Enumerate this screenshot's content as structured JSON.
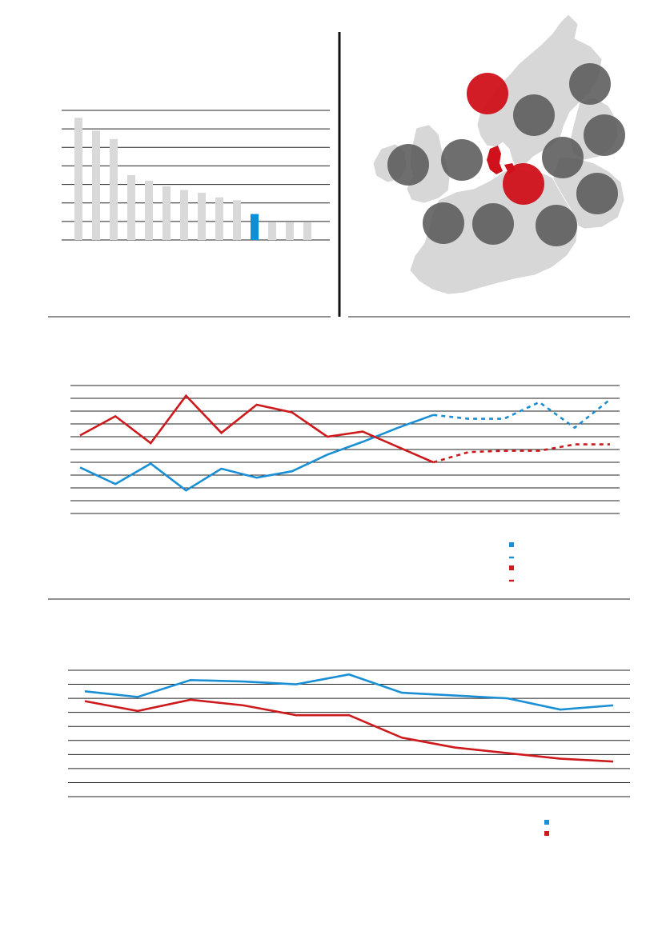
{
  "colors": {
    "highlight_blue": "#0a8fd8",
    "series_blue": "#1a8fd4",
    "series_red": "#cc1a1d",
    "bar_grey": "#d9d9d9",
    "map_land": "#d7d7d7",
    "map_circle": "#5a5a5a",
    "map_highlight": "#d0111b"
  },
  "chart_data": [
    {
      "type": "bar",
      "title": "",
      "categories": [
        "",
        "",
        "",
        "",
        "",
        "",
        "",
        "",
        "",
        "",
        "",
        "",
        "",
        ""
      ],
      "values": [
        6.6,
        5.9,
        5.45,
        3.5,
        3.2,
        2.9,
        2.7,
        2.55,
        2.3,
        2.15,
        1.4,
        0.95,
        0.95,
        0.95
      ],
      "highlight_index": 10,
      "ylim": [
        0,
        7
      ],
      "grid": true
    },
    {
      "type": "line",
      "title": "",
      "x": [
        0,
        1,
        2,
        3,
        4,
        5,
        6,
        7,
        8,
        9,
        10,
        11,
        12,
        13,
        14,
        15
      ],
      "series": [
        {
          "style": "solid",
          "color": "blue",
          "values": [
            3.6,
            2.3,
            3.9,
            1.8,
            3.5,
            2.8,
            3.3,
            4.6,
            5.6,
            6.7,
            7.7,
            null,
            null,
            null,
            null,
            null
          ]
        },
        {
          "style": "dashed",
          "color": "blue",
          "values": [
            null,
            null,
            null,
            null,
            null,
            null,
            null,
            null,
            null,
            null,
            7.7,
            7.4,
            7.4,
            8.7,
            6.7,
            8.9
          ]
        },
        {
          "style": "solid",
          "color": "red",
          "values": [
            6.1,
            7.6,
            5.5,
            9.2,
            6.3,
            8.5,
            7.9,
            6.0,
            6.4,
            5.2,
            4.0,
            null,
            null,
            null,
            null,
            null
          ]
        },
        {
          "style": "dashed",
          "color": "red",
          "values": [
            null,
            null,
            null,
            null,
            null,
            null,
            null,
            null,
            null,
            null,
            4.0,
            4.8,
            4.9,
            4.9,
            5.4,
            5.4
          ]
        }
      ],
      "ylim": [
        0,
        10
      ],
      "grid": true,
      "legend": "bottom-right"
    },
    {
      "type": "line",
      "title": "",
      "x": [
        0,
        1,
        2,
        3,
        4,
        5,
        6,
        7,
        8,
        9,
        10
      ],
      "series": [
        {
          "style": "solid",
          "color": "blue",
          "values": [
            7.5,
            7.1,
            8.3,
            8.2,
            8.0,
            8.7,
            7.4,
            7.2,
            7.0,
            6.2,
            6.5
          ]
        },
        {
          "style": "solid",
          "color": "red",
          "values": [
            6.8,
            6.1,
            6.9,
            6.5,
            5.8,
            5.8,
            4.2,
            3.5,
            3.1,
            2.7,
            2.5
          ]
        }
      ],
      "ylim": [
        0,
        9
      ],
      "grid": true,
      "legend": "bottom-right"
    }
  ],
  "map": {
    "circles": [
      {
        "id": "ireland",
        "highlight": false
      },
      {
        "id": "uk",
        "highlight": false
      },
      {
        "id": "west-coast",
        "highlight": true
      },
      {
        "id": "norway",
        "highlight": false
      },
      {
        "id": "sweden",
        "highlight": false
      },
      {
        "id": "finland",
        "highlight": false
      },
      {
        "id": "baltic-north",
        "highlight": false
      },
      {
        "id": "baltic-east",
        "highlight": false
      },
      {
        "id": "germany-north",
        "highlight": true
      },
      {
        "id": "east-europe",
        "highlight": false
      },
      {
        "id": "france",
        "highlight": false
      },
      {
        "id": "central-europe",
        "highlight": false
      },
      {
        "id": "south-east",
        "highlight": false
      }
    ],
    "marker_icon": "denmark-icon"
  }
}
